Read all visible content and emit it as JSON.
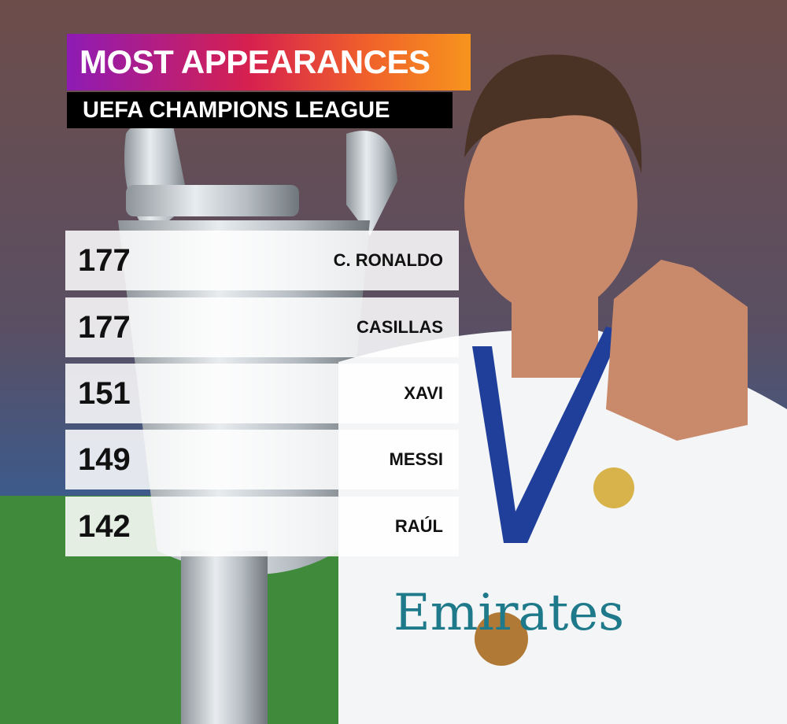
{
  "header": {
    "title": "MOST APPEARANCES",
    "subtitle": "UEFA CHAMPIONS LEAGUE"
  },
  "table": {
    "rows": [
      [
        177,
        "C. RONALDO"
      ],
      [
        177,
        "CASILLAS"
      ],
      [
        151,
        "XAVI"
      ],
      [
        149,
        "MESSI"
      ],
      [
        142,
        "RAÚL"
      ]
    ]
  }
}
